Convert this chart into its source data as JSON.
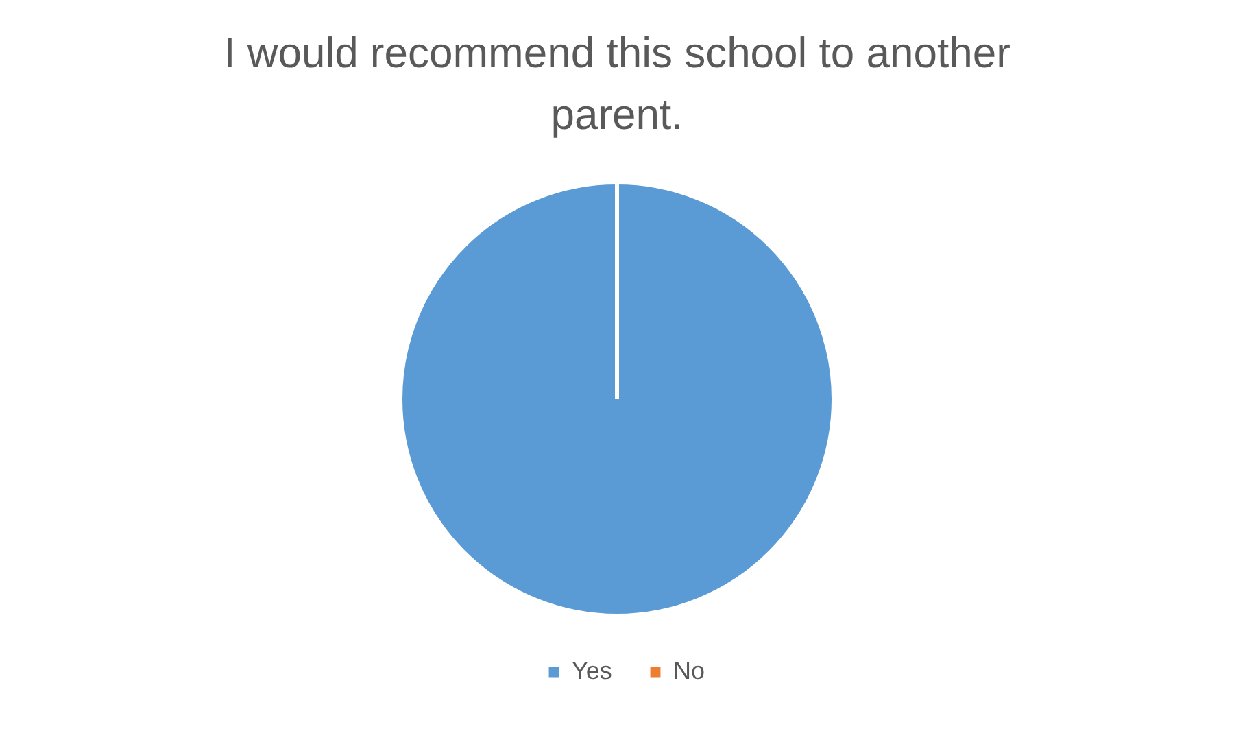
{
  "chart_data": {
    "type": "pie",
    "title": "I would recommend this school to another parent.",
    "categories": [
      "Yes",
      "No"
    ],
    "values": [
      100,
      0
    ],
    "colors": [
      "#5b9bd5",
      "#ed7d31"
    ],
    "legend": "bottom"
  }
}
